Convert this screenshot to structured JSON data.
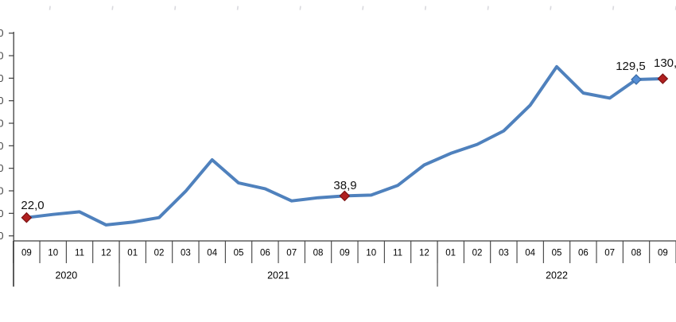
{
  "chart_data": {
    "type": "line",
    "title": "",
    "xlabel": "",
    "ylabel": "",
    "grid": false,
    "legend": "none",
    "x": [
      "09",
      "10",
      "11",
      "12",
      "01",
      "02",
      "03",
      "04",
      "05",
      "06",
      "07",
      "08",
      "09",
      "10",
      "11",
      "12",
      "01",
      "02",
      "03",
      "04",
      "05",
      "06",
      "07",
      "08",
      "09"
    ],
    "year_groups": [
      {
        "year": "2020",
        "start_index": 0,
        "end_index": 3
      },
      {
        "year": "2021",
        "start_index": 4,
        "end_index": 15
      },
      {
        "year": "2022",
        "start_index": 16,
        "end_index": 24
      }
    ],
    "values": [
      22.0,
      24.5,
      26.5,
      16.3,
      18.5,
      22.0,
      42.5,
      67.0,
      49.0,
      44.5,
      35.0,
      37.5,
      38.9,
      39.5,
      47.0,
      63.0,
      72.0,
      79.0,
      89.5,
      109.5,
      139.5,
      119.0,
      115.0,
      129.5,
      130.1
    ],
    "labeled_points": [
      {
        "index": 0,
        "label": "22,0",
        "marker": "dark-red"
      },
      {
        "index": 12,
        "label": "38,9",
        "marker": "dark-red"
      },
      {
        "index": 23,
        "label": "129,5",
        "marker": "blue"
      },
      {
        "index": 24,
        "label": "130,",
        "marker": "dark-red"
      }
    ],
    "y_axis": {
      "tick_count": 10,
      "visible_label_fragment": "0",
      "labels_clipped": true
    },
    "colors": {
      "line": "#4f81bd",
      "marker_dark_red_fill": "#b02020",
      "marker_dark_red_stroke": "#7d1313",
      "marker_blue_fill": "#558ed5",
      "marker_blue_stroke": "#3a6ba5"
    }
  }
}
